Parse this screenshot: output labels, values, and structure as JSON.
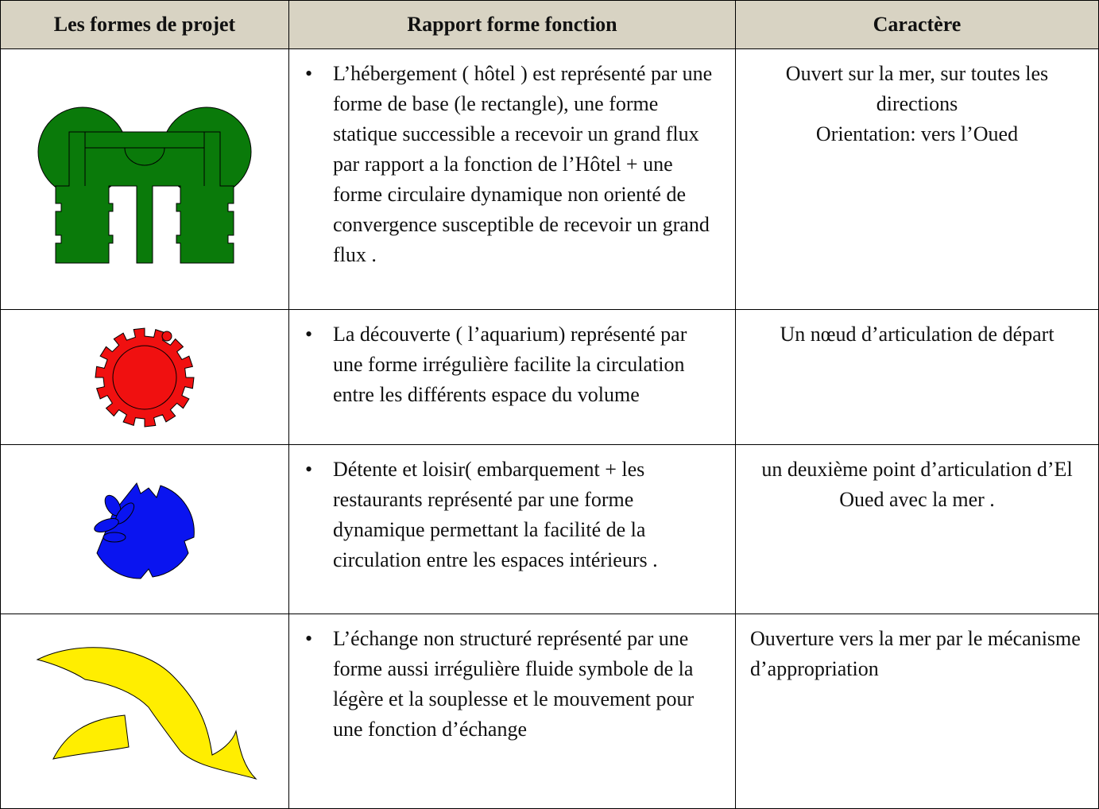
{
  "table": {
    "headers": [
      "Les formes de projet",
      "Rapport forme fonction",
      "Caractère"
    ],
    "rows": [
      {
        "description": "L’hébergement ( hôtel ) est représenté par une forme de base (le rectangle), une forme statique successible a recevoir un grand flux par rapport a la fonction de l’Hôtel + une forme circulaire dynamique non orienté de convergence susceptible de recevoir un grand flux .",
        "character": [
          "Ouvert sur la mer, sur toutes les directions",
          "Orientation: vers l’Oued"
        ]
      },
      {
        "description": "La découverte ( l’aquarium) représenté par une forme irrégulière facilite la circulation entre les différents espace du volume",
        "character": [
          "Un nœud d’articulation de départ"
        ]
      },
      {
        "description": "Détente et loisir( embarquement + les restaurants représenté par une forme dynamique permettant la facilité de la circulation entre les espaces intérieurs .",
        "character": [
          "un deuxième point d’articulation d’El Oued avec la mer ."
        ]
      },
      {
        "description": "L’échange non structuré représenté par une forme aussi irrégulière fluide symbole de la légère et la souplesse et le mouvement  pour une fonction d’échange",
        "character": [
          "Ouverture vers la mer par le mécanisme d’appropriation"
        ]
      }
    ]
  }
}
